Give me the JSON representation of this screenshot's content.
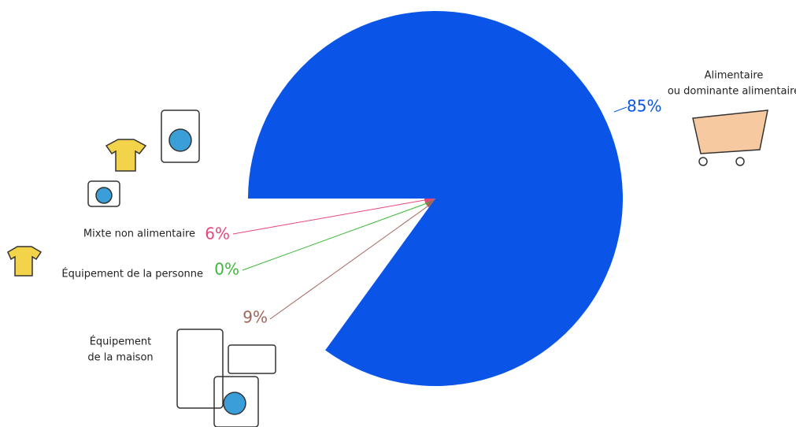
{
  "chart_data": {
    "type": "pie",
    "categories": [
      [
        "Alimentaire",
        "ou dominante alimentaire"
      ],
      [
        "Équipement",
        "de la maison"
      ],
      [
        "Équipement de la personne"
      ],
      [
        "Mixte non alimentaire"
      ]
    ],
    "values": [
      85,
      9,
      0,
      6
    ],
    "value_labels": [
      "85%",
      "9%",
      "0%",
      "6%"
    ],
    "colors": [
      "#0a55e8",
      "#a0645a",
      "#3db83a",
      "#e8457a"
    ]
  }
}
